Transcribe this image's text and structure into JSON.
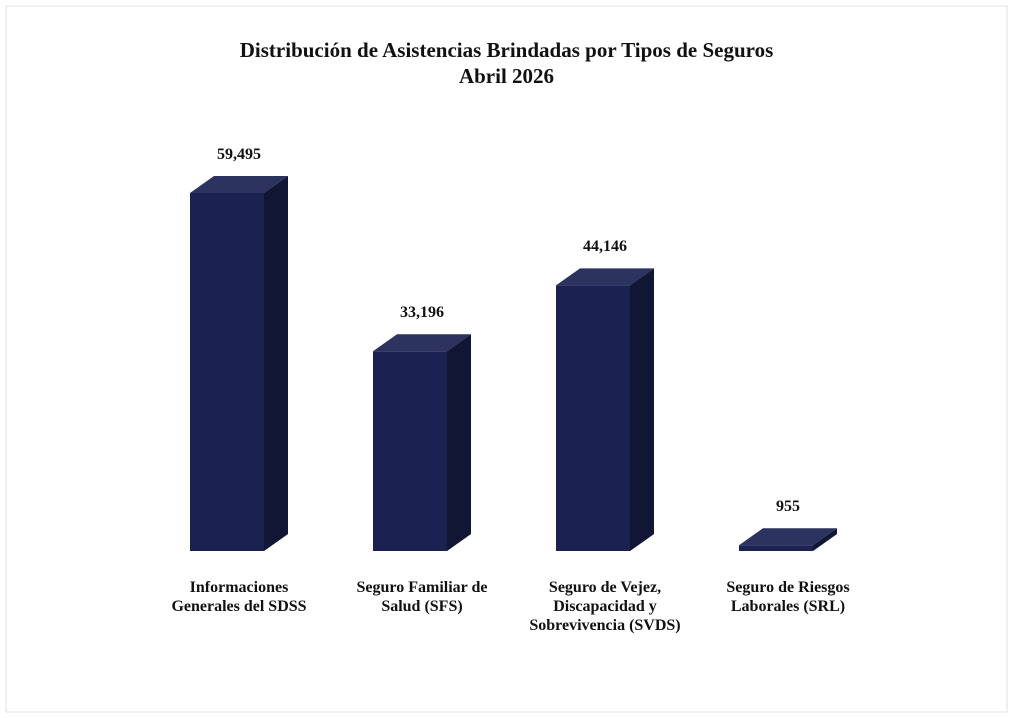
{
  "chart_data": {
    "type": "bar",
    "title": "Distribución de Asistencias Brindadas por Tipos de Seguros",
    "subtitle": "Abril 2026",
    "categories": [
      "Informaciones Generales del SDSS",
      "Seguro Familiar de Salud (SFS)",
      "Seguro de Vejez, Discapacidad y Sobrevivencia (SVDS)",
      "Seguro de Riesgos Laborales (SRL)"
    ],
    "values": [
      59495,
      33196,
      44146,
      955
    ],
    "value_labels": [
      "59,495",
      "33,196",
      "44,146",
      "955"
    ],
    "color": "#1b2252"
  }
}
